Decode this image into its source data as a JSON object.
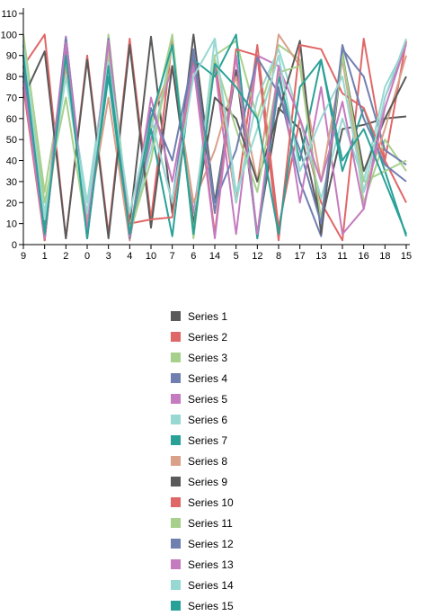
{
  "chart_data": {
    "type": "line",
    "title": "",
    "xlabel": "",
    "ylabel": "",
    "ylim": [
      0,
      110
    ],
    "yticks": [
      0,
      10,
      20,
      30,
      40,
      50,
      60,
      70,
      80,
      90,
      100,
      110
    ],
    "categories": [
      "9",
      "1",
      "2",
      "0",
      "3",
      "4",
      "10",
      "7",
      "6",
      "14",
      "5",
      "12",
      "8",
      "17",
      "13",
      "11",
      "16",
      "18",
      "15"
    ],
    "grid": false,
    "legend_position": "bottom",
    "colors": [
      "#5a5a5a",
      "#e06767",
      "#a8d08d",
      "#6f7fb0",
      "#c47bbf",
      "#98d8d2",
      "#2aa198",
      "#d9a08a",
      "#5a5a5a",
      "#e06767",
      "#a8d08d",
      "#6f7fb0",
      "#c47bbf",
      "#98d8d2",
      "#2aa198"
    ],
    "series": [
      {
        "name": "Series 1",
        "values": [
          90,
          2,
          95,
          3,
          85,
          10,
          99,
          15,
          100,
          20,
          83,
          5,
          65,
          55,
          10,
          55,
          57,
          60,
          61
        ]
      },
      {
        "name": "Series 2",
        "values": [
          85,
          100,
          3,
          90,
          5,
          98,
          12,
          97,
          5,
          88,
          20,
          95,
          8,
          60,
          20,
          2,
          98,
          40,
          97
        ]
      },
      {
        "name": "Series 3",
        "values": [
          100,
          25,
          88,
          5,
          100,
          8,
          55,
          100,
          3,
          90,
          97,
          60,
          95,
          88,
          8,
          93,
          20,
          50,
          35
        ]
      },
      {
        "name": "Series 4",
        "values": [
          80,
          5,
          99,
          8,
          95,
          2,
          60,
          20,
          93,
          15,
          90,
          3,
          75,
          30,
          4,
          93,
          80,
          45,
          38
        ]
      },
      {
        "name": "Series 5",
        "values": [
          95,
          10,
          99,
          10,
          96,
          5,
          50,
          85,
          15,
          85,
          5,
          90,
          85,
          20,
          75,
          5,
          17,
          70,
          95
        ]
      },
      {
        "name": "Series 6",
        "values": [
          88,
          15,
          85,
          20,
          92,
          6,
          45,
          95,
          10,
          98,
          20,
          70,
          93,
          60,
          22,
          60,
          30,
          75,
          95
        ]
      },
      {
        "name": "Series 7",
        "values": [
          82,
          8,
          90,
          6,
          80,
          3,
          55,
          4,
          88,
          80,
          100,
          3,
          80,
          40,
          88,
          35,
          65,
          35,
          4
        ]
      },
      {
        "name": "Series 8",
        "values": [
          90,
          5,
          85,
          10,
          70,
          2,
          60,
          85,
          20,
          45,
          80,
          30,
          100,
          85,
          30,
          88,
          25,
          55,
          90
        ]
      },
      {
        "name": "Series 9",
        "values": [
          70,
          92,
          3,
          88,
          3,
          95,
          8,
          85,
          10,
          70,
          60,
          30,
          63,
          97,
          5,
          90,
          35,
          60,
          80
        ]
      },
      {
        "name": "Series 10",
        "values": [
          75,
          2,
          96,
          3,
          90,
          10,
          12,
          13,
          88,
          5,
          93,
          90,
          2,
          95,
          93,
          72,
          65,
          40,
          20
        ]
      },
      {
        "name": "Series 11",
        "values": [
          92,
          20,
          70,
          5,
          92,
          5,
          40,
          95,
          6,
          88,
          55,
          25,
          82,
          85,
          12,
          90,
          30,
          35,
          40
        ]
      },
      {
        "name": "Series 12",
        "values": [
          85,
          4,
          98,
          5,
          98,
          3,
          65,
          40,
          90,
          20,
          45,
          89,
          72,
          45,
          10,
          95,
          60,
          38,
          30
        ]
      },
      {
        "name": "Series 13",
        "values": [
          78,
          3,
          96,
          6,
          97,
          4,
          70,
          30,
          85,
          3,
          90,
          5,
          85,
          60,
          30,
          68,
          17,
          65,
          96
        ]
      },
      {
        "name": "Series 14",
        "values": [
          95,
          12,
          80,
          15,
          87,
          15,
          60,
          20,
          80,
          98,
          25,
          55,
          90,
          35,
          60,
          80,
          25,
          70,
          98
        ]
      },
      {
        "name": "Series 15",
        "values": [
          90,
          5,
          90,
          3,
          85,
          5,
          60,
          95,
          5,
          86,
          75,
          60,
          5,
          75,
          88,
          40,
          55,
          30,
          5
        ]
      }
    ]
  }
}
